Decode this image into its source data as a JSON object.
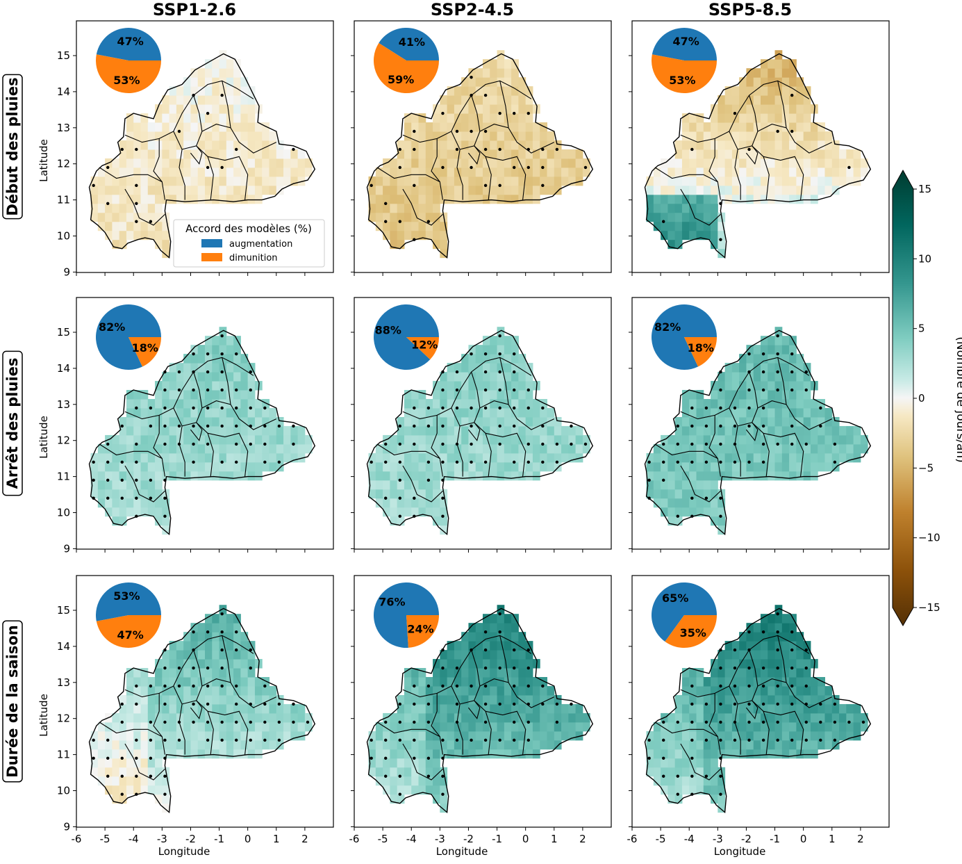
{
  "chart_data": {
    "type": "heatmap",
    "colormap": "BrBG",
    "columns": [
      "SSP1-2.6",
      "SSP2-4.5",
      "SSP5-8.5"
    ],
    "rows": [
      "Début des pluies",
      "Arrêt des pluies",
      "Durée de la saison"
    ],
    "xlabel": "Longitude",
    "ylabel": "Latitude",
    "xlim": [
      -6,
      3
    ],
    "ylim": [
      9,
      16
    ],
    "xticks": [
      "-6",
      "-5",
      "-4",
      "-3",
      "-2",
      "-1",
      "0",
      "1",
      "2"
    ],
    "yticks": [
      "9",
      "10",
      "11",
      "12",
      "13",
      "14",
      "15"
    ],
    "colorbar": {
      "label": "(Nombre de jours/an)",
      "min": -15,
      "max": 15,
      "ticks": [
        "15",
        "10",
        "5",
        "0",
        "−5",
        "−10",
        "−15"
      ],
      "extend": "both"
    },
    "legend": {
      "title": "Accord des modèles (%)",
      "entries": [
        {
          "label": "augmentation",
          "color": "#1f77b4"
        },
        {
          "label": "dimunition",
          "color": "#ff7f0e"
        }
      ]
    },
    "pies": [
      [
        {
          "increase": 47,
          "decrease": 53
        },
        {
          "increase": 41,
          "decrease": 59
        },
        {
          "increase": 47,
          "decrease": 53
        }
      ],
      [
        {
          "increase": 82,
          "decrease": 18
        },
        {
          "increase": 88,
          "decrease": 12
        },
        {
          "increase": 82,
          "decrease": 18
        }
      ],
      [
        {
          "increase": 53,
          "decrease": 47
        },
        {
          "increase": 76,
          "decrease": 24
        },
        {
          "increase": 65,
          "decrease": 35
        }
      ]
    ],
    "panel_mean_change": [
      [
        -1,
        -3,
        -1
      ],
      [
        3,
        3,
        4.5
      ],
      [
        3,
        6,
        6.5
      ]
    ]
  }
}
